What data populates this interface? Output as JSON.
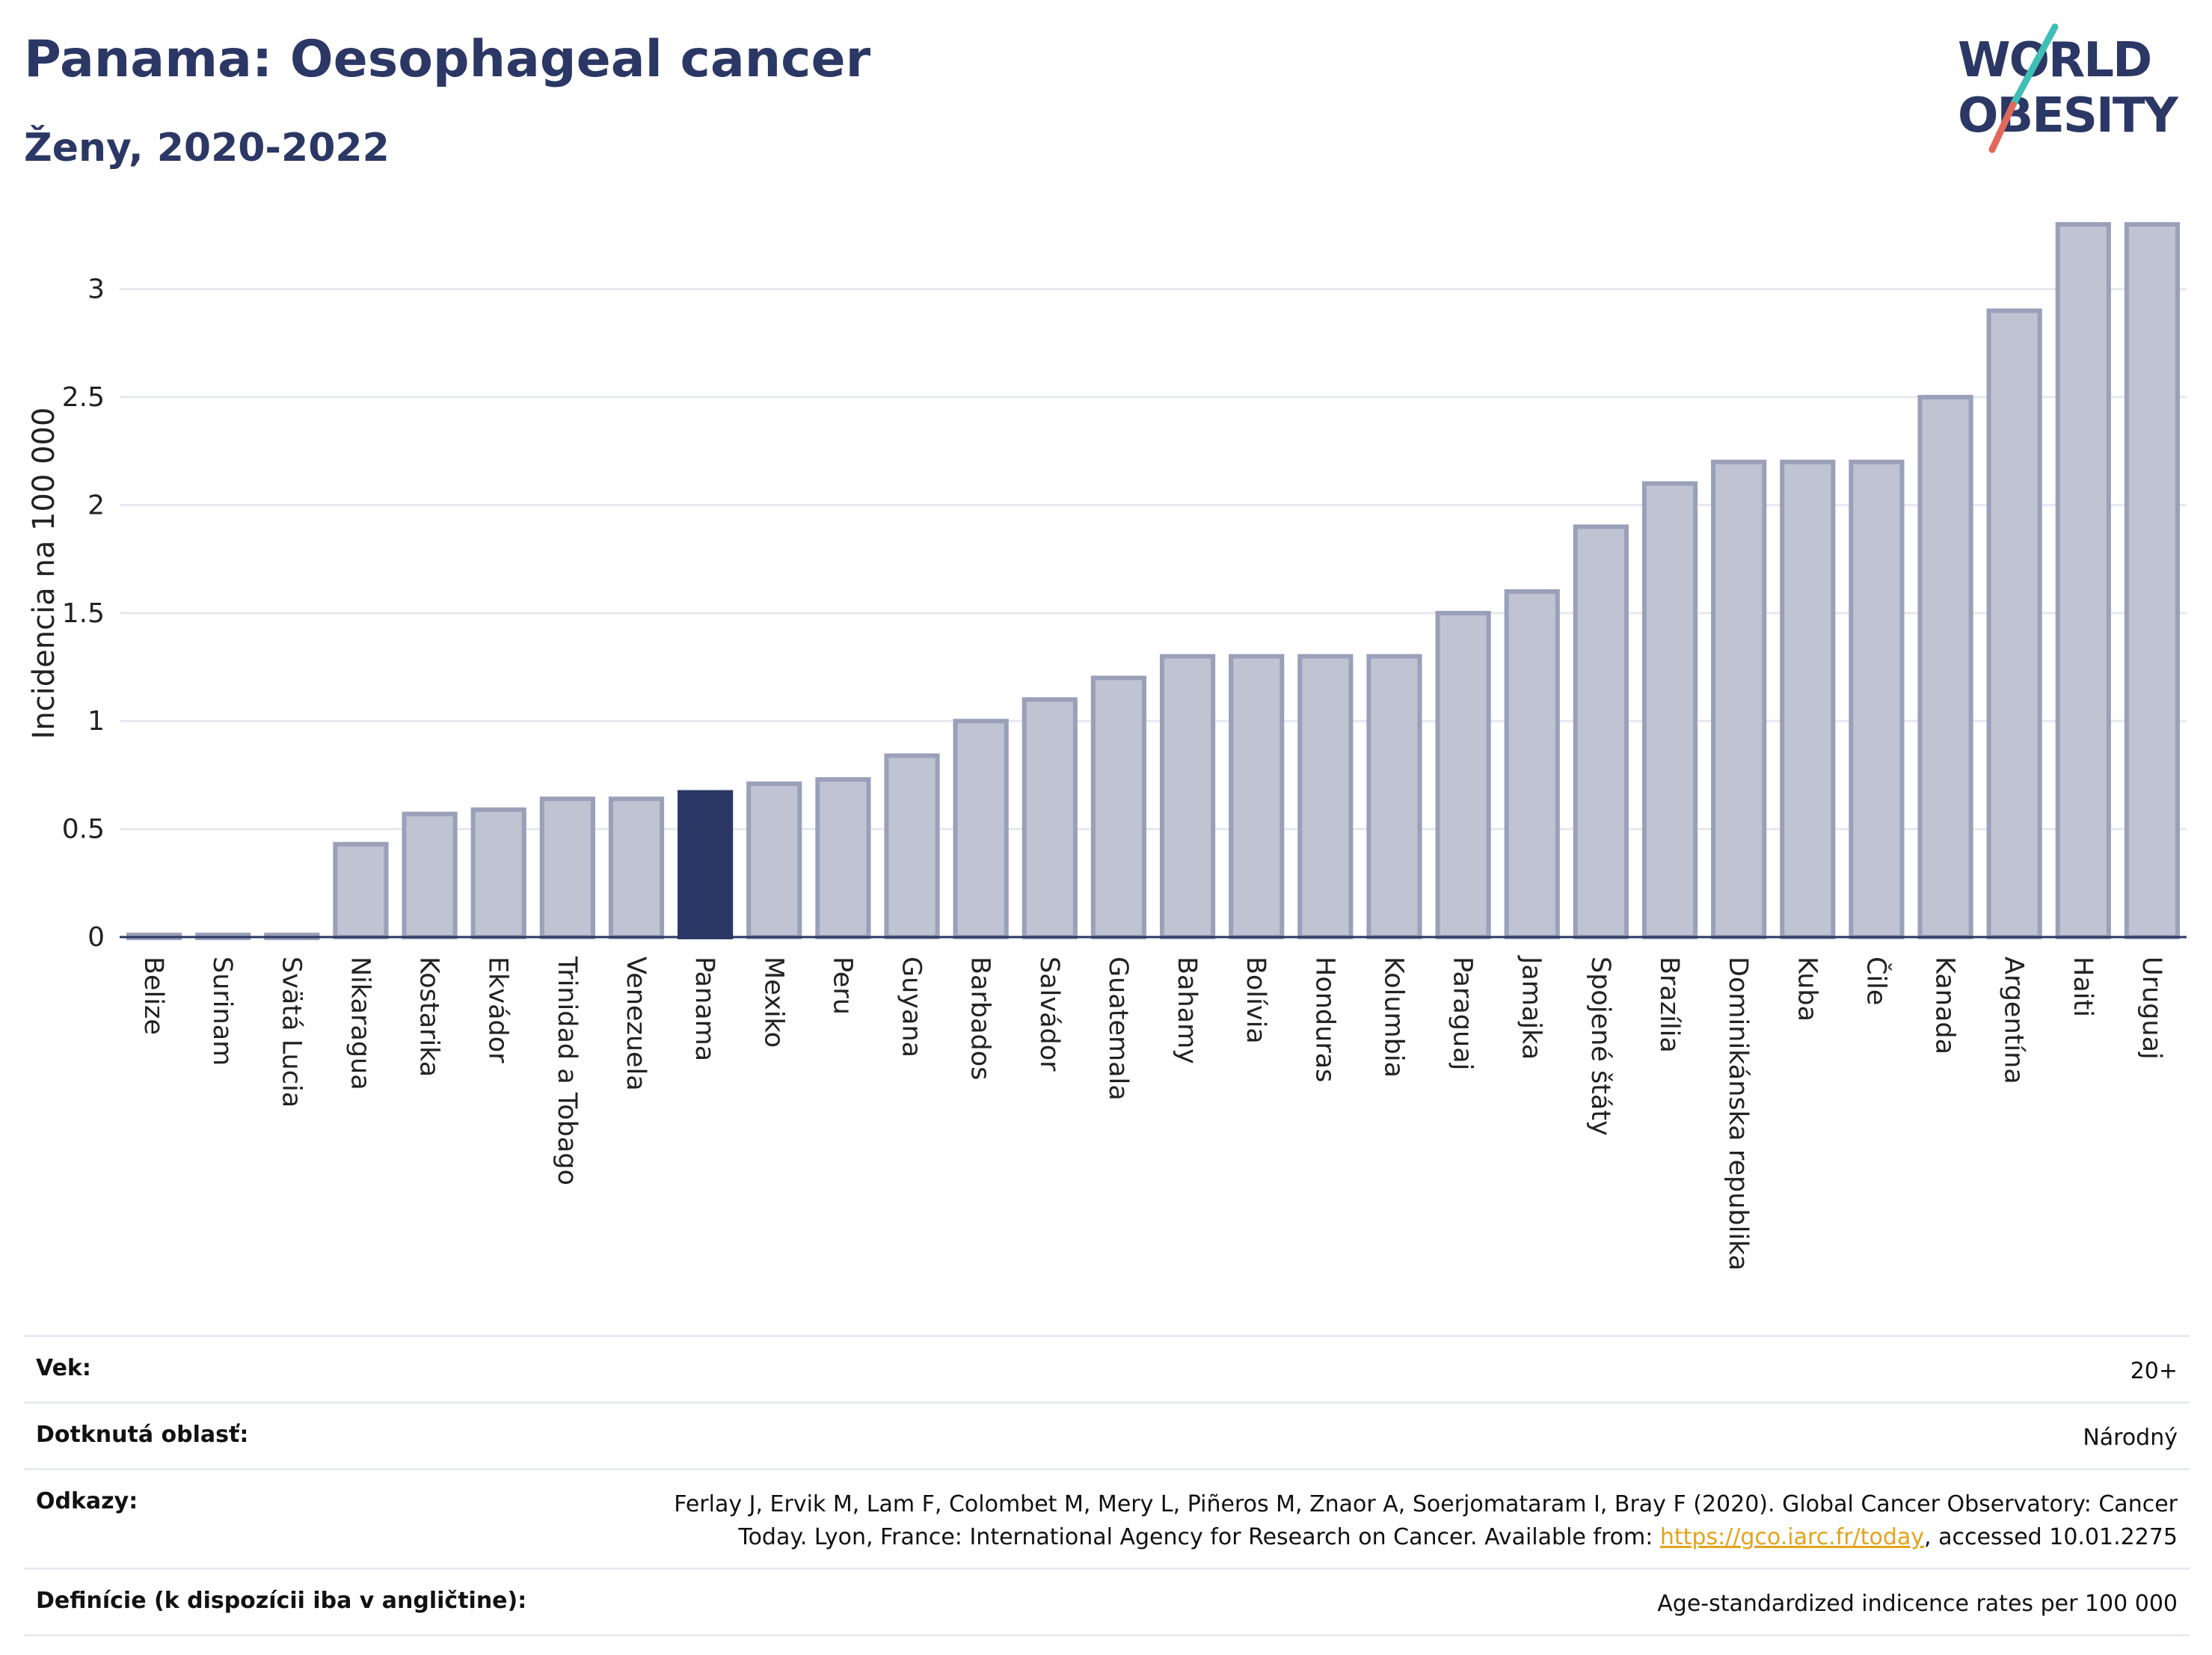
{
  "header": {
    "title": "Panama: Oesophageal cancer",
    "subtitle": "Ženy, 2020-2022"
  },
  "logo": {
    "line1": "WORLD",
    "line2": "OBESITY"
  },
  "chart_data": {
    "type": "bar",
    "ylabel": "Incidencia na 100 000",
    "ylim": [
      0,
      3.3
    ],
    "yticks": [
      0,
      0.5,
      1,
      1.5,
      2,
      2.5,
      3
    ],
    "ytick_labels": [
      "0",
      "0.5",
      "1",
      "1.5",
      "2",
      "2.5",
      "3"
    ],
    "grid": true,
    "highlight": "Panama",
    "colors": {
      "bar": "#bfc3d2",
      "bar_border": "#9aa0b8",
      "highlight": "#2b3764"
    },
    "categories": [
      "Belize",
      "Surinam",
      "Svätá Lucia",
      "Nikaragua",
      "Kostarika",
      "Ekvádor",
      "Trinidad a Tobago",
      "Venezuela",
      "Panama",
      "Mexiko",
      "Peru",
      "Guyana",
      "Barbados",
      "Salvádor",
      "Guatemala",
      "Bahamy",
      "Bolívia",
      "Honduras",
      "Kolumbia",
      "Paraguaj",
      "Jamajka",
      "Spojené štáty",
      "Brazília",
      "Dominikánska republika",
      "Kuba",
      "Čile",
      "Kanada",
      "Argentína",
      "Haiti",
      "Uruguaj"
    ],
    "values": [
      0.01,
      0.01,
      0.01,
      0.43,
      0.57,
      0.59,
      0.64,
      0.64,
      0.67,
      0.71,
      0.73,
      0.84,
      1.0,
      1.1,
      1.2,
      1.3,
      1.3,
      1.3,
      1.3,
      1.5,
      1.6,
      1.9,
      2.1,
      2.2,
      2.2,
      2.2,
      2.5,
      2.9,
      3.3,
      3.3
    ]
  },
  "meta": {
    "rows": [
      {
        "key": "Vek:",
        "value": "20+"
      },
      {
        "key": "Dotknutá oblasť:",
        "value": "Národný"
      },
      {
        "key": "Odkazy:",
        "value_line1": "Ferlay J, Ervik M, Lam F, Colombet M, Mery L, Piñeros M, Znaor A, Soerjomataram I, Bray F (2020). Global Cancer Observatory: Cancer",
        "value_line2_pre": "Today. Lyon, France: International Agency for Research on Cancer. Available from: ",
        "link": "https://gco.iarc.fr/today",
        "value_line2_post": ", accessed 10.01.2275"
      },
      {
        "key": "Definície (k dispozícii iba v angličtine):",
        "value": "Age-standardized indicence rates per 100 000"
      }
    ]
  }
}
